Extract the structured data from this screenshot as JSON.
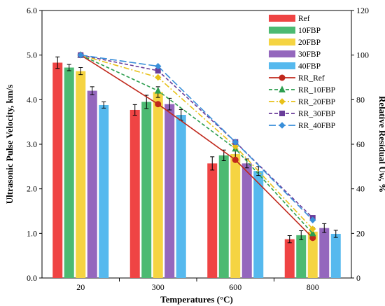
{
  "chart_data": {
    "type": "bar",
    "title": "",
    "xlabel": "Temperatures (°C)",
    "ylabel": "Ultrasonic Pulse Velocity, km/s",
    "ylabel_right": "Relative Residual Uw, %",
    "categories": [
      "20",
      "300",
      "600",
      "800"
    ],
    "ylim": [
      0,
      6
    ],
    "ylim_right": [
      0,
      120
    ],
    "yticks": [
      "0.0",
      "1.0",
      "2.0",
      "3.0",
      "4.0",
      "5.0",
      "6.0"
    ],
    "yticks_right": [
      "0",
      "20",
      "40",
      "60",
      "80",
      "100",
      "120"
    ],
    "grid": false,
    "legend_position": "top-right",
    "bar_series": [
      {
        "name": "Ref",
        "color": "#ef4444",
        "values": [
          4.83,
          3.77,
          2.57,
          0.87
        ],
        "errors": [
          0.13,
          0.12,
          0.15,
          0.08
        ]
      },
      {
        "name": "10FBP",
        "color": "#4cba72",
        "values": [
          4.72,
          3.95,
          2.75,
          0.96
        ],
        "errors": [
          0.07,
          0.15,
          0.12,
          0.1
        ]
      },
      {
        "name": "20FBP",
        "color": "#f5d442",
        "values": [
          4.64,
          4.17,
          2.78,
          1.04
        ],
        "errors": [
          0.08,
          0.12,
          0.15,
          0.09
        ]
      },
      {
        "name": "30FBP",
        "color": "#9467bd",
        "values": [
          4.2,
          3.9,
          2.57,
          1.12
        ],
        "errors": [
          0.09,
          0.13,
          0.1,
          0.1
        ]
      },
      {
        "name": "40FBP",
        "color": "#56b9ee",
        "values": [
          3.88,
          3.66,
          2.4,
          0.99
        ],
        "errors": [
          0.07,
          0.12,
          0.1,
          0.08
        ]
      }
    ],
    "line_series": [
      {
        "name": "RR_Ref",
        "color": "#c0281c",
        "dash": "solid",
        "marker": "circle",
        "values": [
          100,
          78,
          53,
          18
        ]
      },
      {
        "name": "RR_10FBP",
        "color": "#2d9e4f",
        "dash": "dashed",
        "marker": "triangle",
        "values": [
          100,
          84,
          58,
          20
        ]
      },
      {
        "name": "RR_20FBP",
        "color": "#e8c11a",
        "dash": "dashdot",
        "marker": "diamond",
        "values": [
          100,
          90,
          59,
          22
        ]
      },
      {
        "name": "RR_30FBP",
        "color": "#6a3d9a",
        "dash": "dashed",
        "marker": "square",
        "values": [
          100,
          93,
          61,
          27
        ]
      },
      {
        "name": "RR_40FBP",
        "color": "#3a8fd9",
        "dash": "longdash",
        "marker": "diamond",
        "values": [
          100,
          95,
          61,
          26
        ]
      }
    ]
  }
}
